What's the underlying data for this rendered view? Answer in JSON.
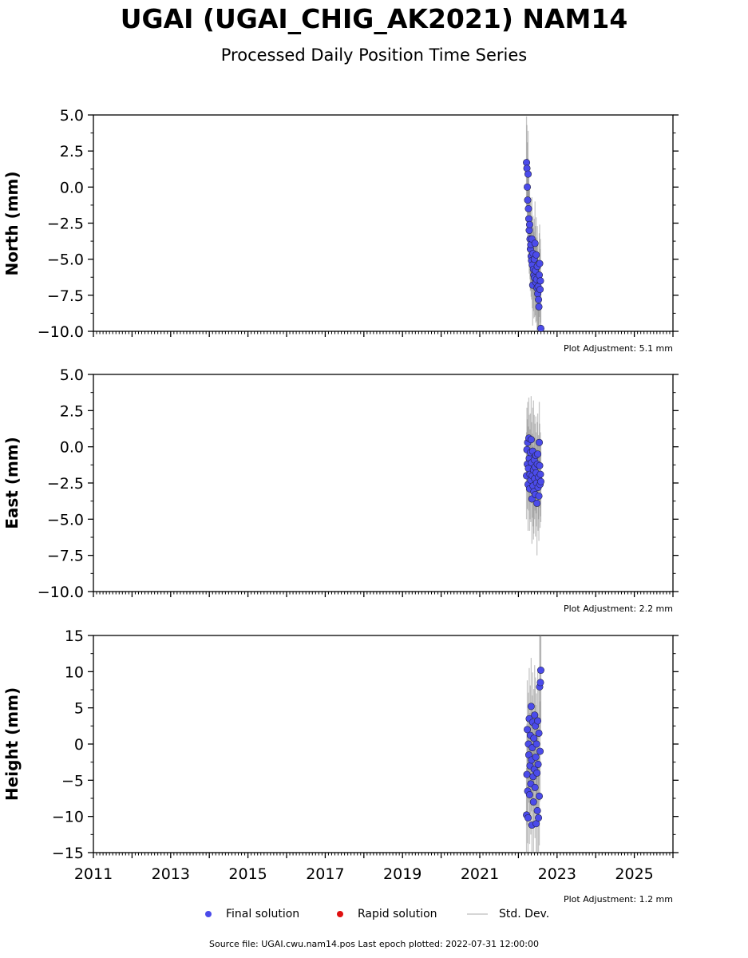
{
  "title": "UGAI (UGAI_CHIG_AK2021) NAM14",
  "subtitle": "Processed Daily Position Time Series",
  "legend": {
    "final": "Final solution",
    "rapid": "Rapid solution",
    "std": "Std. Dev."
  },
  "footer": "Source file: UGAI.cwu.nam14.pos  Last epoch plotted: 2022-07-31 12:00:00",
  "colors": {
    "final": "#4b4bea",
    "rapid": "#e01010",
    "std_dev": "#808080",
    "axis": "#000000"
  },
  "chart_data": [
    {
      "type": "scatter",
      "ylabel": "North (mm)",
      "xlim": [
        2011,
        2026
      ],
      "ylim": [
        -10,
        5
      ],
      "yticks": [
        5.0,
        2.5,
        0.0,
        -2.5,
        -5.0,
        -7.5,
        -10.0
      ],
      "ytick_labels": [
        "5.0",
        "2.5",
        "0.0",
        "−2.5",
        "−5.0",
        "−7.5",
        "−10.0"
      ],
      "show_xtick_labels": false,
      "adjustment": "Plot Adjustment: 5.1 mm",
      "series": [
        {
          "x": [
            2022.21,
            2022.22,
            2022.23,
            2022.24,
            2022.25,
            2022.26,
            2022.27,
            2022.28,
            2022.29,
            2022.3,
            2022.31,
            2022.32,
            2022.33,
            2022.34,
            2022.35,
            2022.36,
            2022.37,
            2022.38,
            2022.39,
            2022.4,
            2022.41,
            2022.42,
            2022.43,
            2022.44,
            2022.45,
            2022.46,
            2022.47,
            2022.48,
            2022.49,
            2022.5,
            2022.51,
            2022.52,
            2022.53,
            2022.54,
            2022.55,
            2022.56,
            2022.57,
            2022.58
          ],
          "y": [
            1.7,
            1.3,
            0.0,
            -0.9,
            0.9,
            -1.5,
            -2.2,
            -3.0,
            -2.6,
            -3.6,
            -4.3,
            -4.0,
            -4.8,
            -5.1,
            -3.6,
            -5.4,
            -6.8,
            -4.6,
            -5.7,
            -6.1,
            -5.0,
            -6.3,
            -3.9,
            -5.8,
            -6.6,
            -4.7,
            -6.4,
            -7.0,
            -5.5,
            -7.4,
            -6.9,
            -7.8,
            -8.3,
            -6.1,
            -5.3,
            -7.1,
            -6.5,
            -9.8
          ],
          "err": [
            3.2,
            3.0,
            3.1,
            2.9,
            3.0,
            2.8,
            2.9,
            3.0,
            2.7,
            2.8,
            2.9,
            3.1,
            2.8,
            2.7,
            2.9,
            3.0,
            2.8,
            2.6,
            2.9,
            3.0,
            2.8,
            2.7,
            2.9,
            3.1,
            2.8,
            2.6,
            2.9,
            3.0,
            2.8,
            2.7,
            2.9,
            2.8,
            3.0,
            2.9,
            2.7,
            2.8,
            2.9,
            2.6
          ]
        }
      ]
    },
    {
      "type": "scatter",
      "ylabel": "East (mm)",
      "xlim": [
        2011,
        2026
      ],
      "ylim": [
        -10,
        5
      ],
      "yticks": [
        5.0,
        2.5,
        0.0,
        -2.5,
        -5.0,
        -7.5,
        -10.0
      ],
      "ytick_labels": [
        "5.0",
        "2.5",
        "0.0",
        "−2.5",
        "−5.0",
        "−7.5",
        "−10.0"
      ],
      "show_xtick_labels": false,
      "adjustment": "Plot Adjustment: 2.2 mm",
      "series": [
        {
          "x": [
            2022.21,
            2022.22,
            2022.23,
            2022.24,
            2022.25,
            2022.26,
            2022.27,
            2022.28,
            2022.29,
            2022.3,
            2022.31,
            2022.32,
            2022.33,
            2022.34,
            2022.35,
            2022.36,
            2022.37,
            2022.38,
            2022.39,
            2022.4,
            2022.41,
            2022.42,
            2022.43,
            2022.44,
            2022.45,
            2022.46,
            2022.47,
            2022.48,
            2022.49,
            2022.5,
            2022.51,
            2022.52,
            2022.53,
            2022.54,
            2022.55,
            2022.56,
            2022.57,
            2022.58
          ],
          "y": [
            -2.0,
            -0.2,
            -1.2,
            0.3,
            -2.6,
            -1.5,
            0.6,
            -0.8,
            -2.9,
            -1.9,
            -0.4,
            -2.3,
            0.5,
            -1.1,
            -3.6,
            -2.0,
            -0.3,
            -2.7,
            -1.6,
            -3.1,
            -0.9,
            -2.2,
            -1.4,
            -3.3,
            -0.6,
            -1.8,
            -2.5,
            -3.9,
            -1.2,
            -0.5,
            -2.8,
            -2.1,
            -3.4,
            0.3,
            -1.3,
            -2.6,
            -1.9,
            -2.4
          ],
          "err": [
            3.0,
            2.9,
            3.1,
            2.8,
            3.2,
            2.9,
            2.8,
            3.0,
            2.9,
            3.1,
            2.7,
            2.9,
            3.0,
            2.8,
            3.1,
            2.9,
            3.0,
            2.8,
            4.8,
            2.9,
            3.1,
            2.8,
            3.0,
            2.9,
            2.7,
            2.8,
            3.0,
            3.6,
            2.9,
            2.8,
            3.0,
            2.9,
            3.1,
            2.8,
            2.9,
            3.0,
            2.9,
            2.8
          ]
        }
      ]
    },
    {
      "type": "scatter",
      "ylabel": "Height (mm)",
      "xlim": [
        2011,
        2026
      ],
      "ylim": [
        -15,
        15
      ],
      "yticks": [
        15,
        10,
        5,
        0,
        -5,
        -10,
        -15
      ],
      "ytick_labels": [
        "15",
        "10",
        "5",
        "0",
        "−5",
        "−10",
        "−15"
      ],
      "show_xtick_labels": true,
      "xticks": [
        2011,
        2013,
        2015,
        2017,
        2019,
        2021,
        2023,
        2025
      ],
      "xtick_labels": [
        "2011",
        "2013",
        "2015",
        "2017",
        "2019",
        "2021",
        "2023",
        "2025"
      ],
      "adjustment": "Plot Adjustment: 1.2 mm",
      "series": [
        {
          "x": [
            2022.21,
            2022.22,
            2022.23,
            2022.24,
            2022.25,
            2022.26,
            2022.27,
            2022.28,
            2022.29,
            2022.3,
            2022.31,
            2022.32,
            2022.33,
            2022.34,
            2022.35,
            2022.36,
            2022.37,
            2022.38,
            2022.39,
            2022.4,
            2022.41,
            2022.42,
            2022.43,
            2022.44,
            2022.45,
            2022.46,
            2022.47,
            2022.48,
            2022.49,
            2022.5,
            2022.51,
            2022.52,
            2022.53,
            2022.54,
            2022.55,
            2022.56,
            2022.57,
            2022.58
          ],
          "y": [
            -9.8,
            -4.2,
            2.0,
            -6.5,
            -10.2,
            0.0,
            -1.5,
            3.5,
            -7.0,
            -3.0,
            1.2,
            -5.5,
            5.2,
            -2.2,
            -11.2,
            -0.5,
            3.0,
            -4.5,
            -8.0,
            0.8,
            -3.5,
            4.0,
            -6.0,
            2.5,
            -1.8,
            -11.0,
            0.0,
            -4.0,
            -9.2,
            3.2,
            -2.8,
            -10.2,
            1.5,
            -7.2,
            7.9,
            -1.0,
            8.5,
            10.2
          ],
          "err": [
            6.5,
            7.0,
            6.8,
            7.2,
            6.9,
            7.1,
            6.6,
            7.0,
            6.8,
            7.3,
            6.9,
            7.0,
            6.7,
            7.1,
            6.8,
            7.2,
            6.9,
            6.6,
            7.0,
            6.8,
            7.1,
            6.9,
            7.0,
            6.7,
            7.2,
            6.8,
            7.0,
            6.9,
            7.1,
            6.8,
            7.0,
            6.9,
            7.2,
            6.8,
            7.0,
            6.9,
            7.1,
            6.8
          ]
        }
      ]
    }
  ]
}
